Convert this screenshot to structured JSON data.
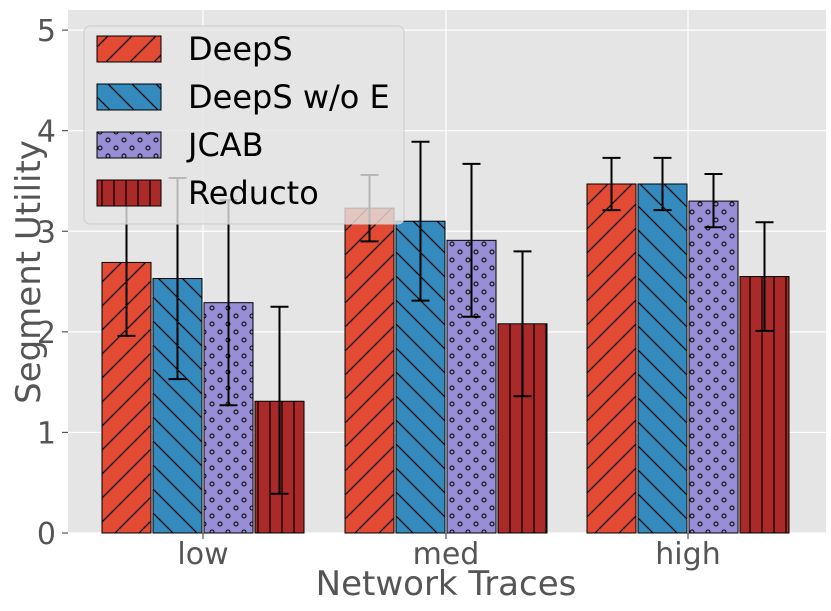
{
  "chart_data": {
    "type": "bar",
    "title": "",
    "xlabel": "Network Traces",
    "ylabel": "Segment Utility",
    "ylim": [
      0,
      5.2
    ],
    "yticks": [
      0,
      1,
      2,
      3,
      4,
      5
    ],
    "categories": [
      "low",
      "med",
      "high"
    ],
    "grid": true,
    "legend_position": "top-left",
    "series": [
      {
        "name": "DeepS",
        "color": "#E24A33",
        "hatch": "forward-diagonal",
        "values": [
          2.69,
          3.23,
          3.47
        ],
        "err_low": [
          1.96,
          2.9,
          3.21
        ],
        "err_high": [
          3.43,
          3.56,
          3.73
        ]
      },
      {
        "name": "DeepS w/o E",
        "color": "#348ABD",
        "hatch": "backward-diagonal",
        "values": [
          2.53,
          3.1,
          3.47
        ],
        "err_low": [
          1.53,
          2.31,
          3.21
        ],
        "err_high": [
          3.53,
          3.89,
          3.73
        ]
      },
      {
        "name": "JCAB",
        "color": "#988ED5",
        "hatch": "dots",
        "values": [
          2.29,
          2.91,
          3.3
        ],
        "err_low": [
          1.27,
          2.15,
          3.04
        ],
        "err_high": [
          3.31,
          3.67,
          3.57
        ]
      },
      {
        "name": "Reducto",
        "color": "#AA2A2A",
        "hatch": "vertical",
        "values": [
          1.31,
          2.08,
          2.55
        ],
        "err_low": [
          0.39,
          1.36,
          2.01
        ],
        "err_high": [
          2.25,
          2.8,
          3.09
        ]
      }
    ]
  }
}
